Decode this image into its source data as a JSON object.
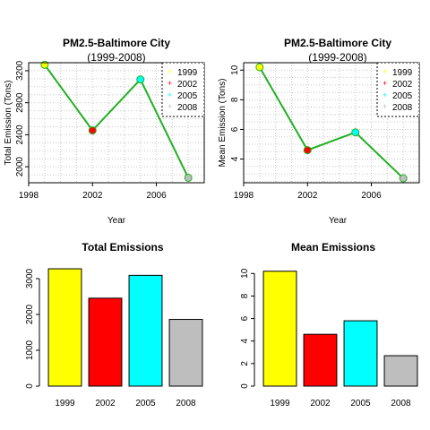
{
  "colors": {
    "1999": "#ffff00",
    "2002": "#ff0000",
    "2005": "#00ffff",
    "2008": "#bebebe",
    "line": "#22b022",
    "grid": "#c8c8c8"
  },
  "chart_data": [
    {
      "type": "line",
      "title": "PM2.5-Baltimore City",
      "subtitle": "(1999-2008)",
      "xlabel": "Year",
      "ylabel": "Total Emission (Tons)",
      "x": [
        1999,
        2002,
        2005,
        2008
      ],
      "y": [
        3274,
        2454,
        3091,
        1862
      ],
      "xlim": [
        1998,
        2009
      ],
      "ylim": [
        1800,
        3300
      ],
      "xticks": [
        "1998",
        "2002",
        "2006"
      ],
      "yticks": [
        "2000",
        "2400",
        "2800",
        "3200"
      ],
      "xtick_values": [
        1998,
        2002,
        2006
      ],
      "ytick_values": [
        2000,
        2400,
        2800,
        3200
      ],
      "grid": true,
      "legend": [
        "1999",
        "2002",
        "2005",
        "2008"
      ],
      "legend_position": "top-right"
    },
    {
      "type": "line",
      "title": "PM2.5-Baltimore City",
      "subtitle": "(1999-2008)",
      "xlabel": "Year",
      "ylabel": "Mean Emission (Tons)",
      "x": [
        1999,
        2002,
        2005,
        2008
      ],
      "y": [
        10.2,
        4.6,
        5.8,
        2.7
      ],
      "xlim": [
        1998,
        2009
      ],
      "ylim": [
        2.4,
        10.5
      ],
      "xticks": [
        "1998",
        "2002",
        "2006"
      ],
      "yticks": [
        "4",
        "6",
        "8",
        "10"
      ],
      "xtick_values": [
        1998,
        2002,
        2006
      ],
      "ytick_values": [
        4,
        6,
        8,
        10
      ],
      "grid": true,
      "legend": [
        "1999",
        "2002",
        "2005",
        "2008"
      ],
      "legend_position": "top-right"
    },
    {
      "type": "bar",
      "title": "Total Emissions",
      "categories": [
        "1999",
        "2002",
        "2005",
        "2008"
      ],
      "values": [
        3274,
        2454,
        3091,
        1862
      ],
      "ylim": [
        0,
        3300
      ],
      "yticks": [
        "0",
        "1000",
        "2000",
        "3000"
      ],
      "ytick_values": [
        0,
        1000,
        2000,
        3000
      ]
    },
    {
      "type": "bar",
      "title": "Mean Emissions",
      "categories": [
        "1999",
        "2002",
        "2005",
        "2008"
      ],
      "values": [
        10.2,
        4.6,
        5.8,
        2.7
      ],
      "ylim": [
        0,
        10.5
      ],
      "yticks": [
        "0",
        "2",
        "4",
        "6",
        "8",
        "10"
      ],
      "ytick_values": [
        0,
        2,
        4,
        6,
        8,
        10
      ]
    }
  ]
}
